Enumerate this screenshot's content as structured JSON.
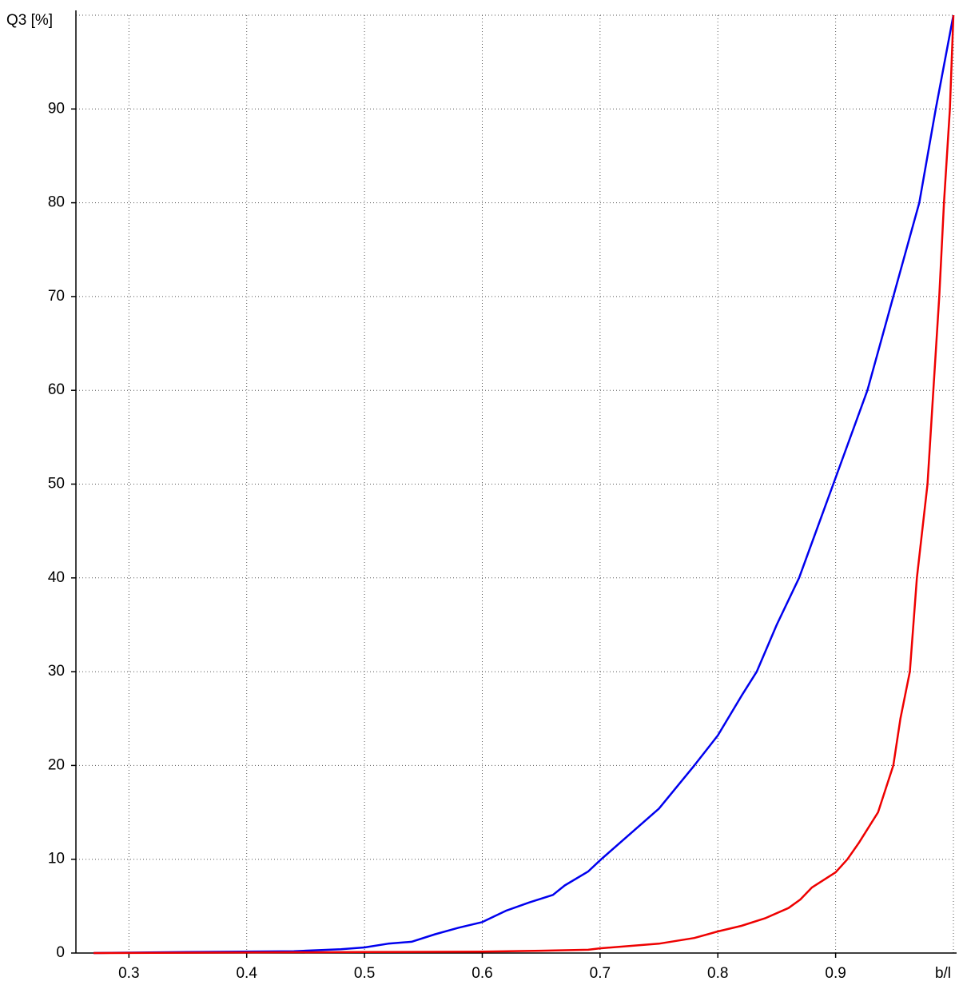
{
  "chart_data": {
    "type": "line",
    "x_label": "b/l",
    "y_label": "Q3 [%]",
    "xlim": [
      0.255,
      1.0
    ],
    "ylim": [
      0,
      100
    ],
    "xticks": [
      0.3,
      0.4,
      0.5,
      0.6,
      0.7,
      0.8,
      0.9
    ],
    "yticks": [
      0,
      10,
      20,
      30,
      40,
      50,
      60,
      70,
      80,
      90
    ],
    "grid": true,
    "series": [
      {
        "color": "#0000ee",
        "x": [
          0.27,
          0.35,
          0.44,
          0.48,
          0.5,
          0.52,
          0.54,
          0.56,
          0.58,
          0.6,
          0.62,
          0.64,
          0.66,
          0.67,
          0.69,
          0.701,
          0.73,
          0.75,
          0.78,
          0.8,
          0.82,
          0.833,
          0.85,
          0.869,
          0.898,
          0.927,
          0.949,
          0.971,
          0.985,
          1.0
        ],
        "values": [
          0,
          0.1,
          0.2,
          0.4,
          0.6,
          1.0,
          1.2,
          2.0,
          2.7,
          3.3,
          4.5,
          5.4,
          6.2,
          7.2,
          8.7,
          10,
          13.2,
          15.4,
          20,
          23.2,
          27.4,
          30,
          35,
          40,
          50,
          60,
          70,
          80,
          90,
          100
        ]
      },
      {
        "color": "#ee0000",
        "x": [
          0.27,
          0.5,
          0.6,
          0.65,
          0.69,
          0.7,
          0.75,
          0.78,
          0.8,
          0.82,
          0.84,
          0.86,
          0.87,
          0.88,
          0.9,
          0.91,
          0.92,
          0.936,
          0.949,
          0.955,
          0.963,
          0.969,
          0.978,
          0.983,
          0.988,
          0.992,
          0.997,
          1.0
        ],
        "values": [
          0,
          0.1,
          0.15,
          0.25,
          0.35,
          0.5,
          1.0,
          1.6,
          2.3,
          2.9,
          3.7,
          4.8,
          5.7,
          7,
          8.6,
          10,
          11.8,
          15,
          20,
          25,
          30,
          40,
          50,
          60,
          70,
          80,
          90,
          100
        ]
      }
    ]
  }
}
